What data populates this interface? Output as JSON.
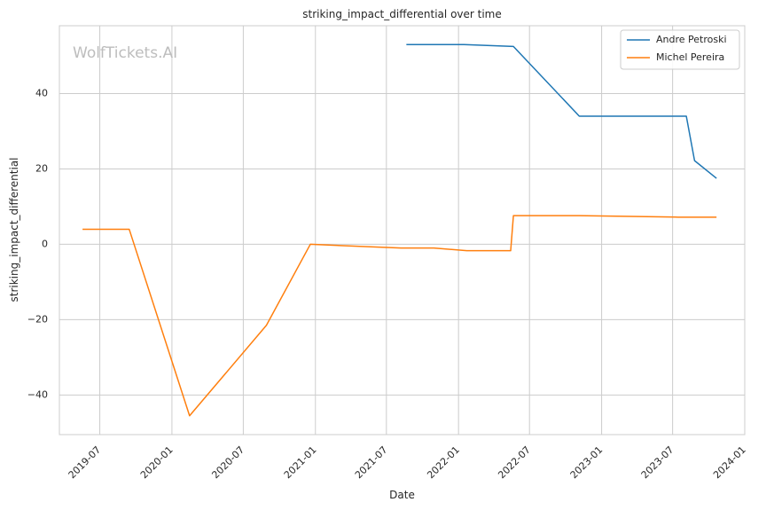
{
  "chart_data": {
    "type": "line",
    "title": "striking_impact_differential over time",
    "xlabel": "Date",
    "ylabel": "striking_impact_differential",
    "watermark": "WolfTickets.AI",
    "xlim": [
      "2019-03-20",
      "2024-01-01"
    ],
    "ylim": [
      -50.5,
      58
    ],
    "x_ticks": [
      "2019-07-01",
      "2020-01-01",
      "2020-07-01",
      "2021-01-01",
      "2021-07-01",
      "2022-01-01",
      "2022-07-01",
      "2023-01-01",
      "2023-07-01",
      "2024-01-01"
    ],
    "x_tick_labels": [
      "2019-07",
      "2020-01",
      "2020-07",
      "2021-01",
      "2021-07",
      "2022-01",
      "2022-07",
      "2023-01",
      "2023-07",
      "2024-01"
    ],
    "y_ticks": [
      -40,
      -20,
      0,
      20,
      40
    ],
    "y_tick_labels": [
      "−40",
      "−20",
      "0",
      "20",
      "40"
    ],
    "grid": true,
    "legend_position": "top-right",
    "series": [
      {
        "name": "Andre Petroski",
        "color": "#1f77b4",
        "points": [
          [
            "2021-08-21",
            53.0
          ],
          [
            "2022-01-15",
            53.0
          ],
          [
            "2022-05-21",
            52.5
          ],
          [
            "2022-11-05",
            34.0
          ],
          [
            "2023-08-05",
            34.0
          ],
          [
            "2023-08-26",
            22.2
          ],
          [
            "2023-10-21",
            17.5
          ]
        ]
      },
      {
        "name": "Michel Pereira",
        "color": "#ff7f0e",
        "points": [
          [
            "2019-05-18",
            4.0
          ],
          [
            "2019-09-14",
            4.0
          ],
          [
            "2020-02-15",
            -45.5
          ],
          [
            "2020-08-29",
            -21.5
          ],
          [
            "2020-12-19",
            0.0
          ],
          [
            "2021-08-07",
            -1.0
          ],
          [
            "2021-10-30",
            -1.0
          ],
          [
            "2022-01-22",
            -1.7
          ],
          [
            "2022-05-14",
            -1.7
          ],
          [
            "2022-05-21",
            7.6
          ],
          [
            "2022-11-05",
            7.6
          ],
          [
            "2023-07-15",
            7.2
          ],
          [
            "2023-10-21",
            7.2
          ]
        ]
      }
    ]
  }
}
